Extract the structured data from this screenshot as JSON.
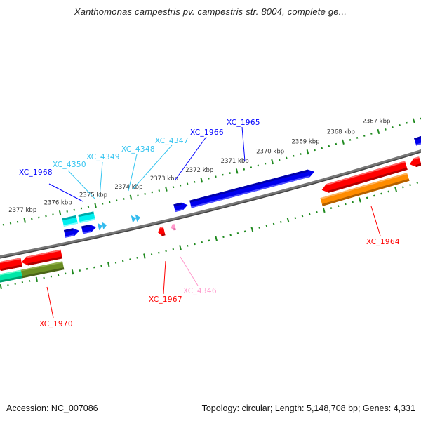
{
  "title": "Xanthomonas campestris pv. campestris str. 8004, complete ge...",
  "footer": {
    "accession": "Accession: NC_007086",
    "topology": "Topology: circular; Length: 5,148,708 bp; Genes: 4,331"
  },
  "scale": {
    "unit": "kbp",
    "labels": [
      "2377 kbp",
      "2376 kbp",
      "2375 kbp",
      "2374 kbp",
      "2373 kbp",
      "2372 kbp",
      "2371 kbp",
      "2370 kbp",
      "2369 kbp",
      "2368 kbp",
      "2367 kbp"
    ]
  },
  "genes": {
    "XC_1968": "XC_1968",
    "XC_4350": "XC_4350",
    "XC_4349": "XC_4349",
    "XC_4348": "XC_4348",
    "XC_4347": "XC_4347",
    "XC_1966": "XC_1966",
    "XC_1965": "XC_1965",
    "XC_1964": "XC_1964",
    "XC_1967": "XC_1967",
    "XC_4346": "XC_4346",
    "XC_1970": "XC_1970"
  },
  "colors": {
    "plus_strand": "#0000ff",
    "minus_strand": "#ff0000",
    "trna": "#33c4f0",
    "scale_ticks": "#1f8a1f",
    "backbone": "#777777"
  }
}
